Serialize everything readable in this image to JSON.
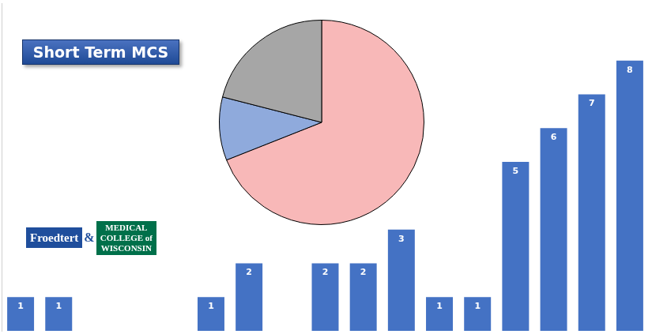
{
  "chart_data": [
    {
      "type": "bar",
      "title": "Short Term MCS",
      "annotations": [
        "Froedtert",
        "&",
        "MEDICAL",
        "COLLEGE of",
        "WISCONSIN"
      ],
      "categories": [
        null,
        null,
        null,
        null,
        null,
        null,
        null,
        null,
        null,
        null,
        null,
        null,
        null,
        null,
        null,
        null,
        null
      ],
      "values": [
        1,
        1,
        null,
        null,
        null,
        1,
        2,
        null,
        2,
        2,
        3,
        1,
        1,
        5,
        6,
        7,
        8
      ],
      "color": "#4472c4",
      "ylim": [
        0,
        9.7
      ],
      "grid": false,
      "data_labels": true,
      "tick_labels": false
    },
    {
      "type": "pie",
      "categories": [
        null,
        null,
        null
      ],
      "values": [
        69,
        10,
        21
      ],
      "colors": [
        "#f8b8b8",
        "#8faadc",
        "#a6a6a6"
      ],
      "data_labels": false
    }
  ]
}
